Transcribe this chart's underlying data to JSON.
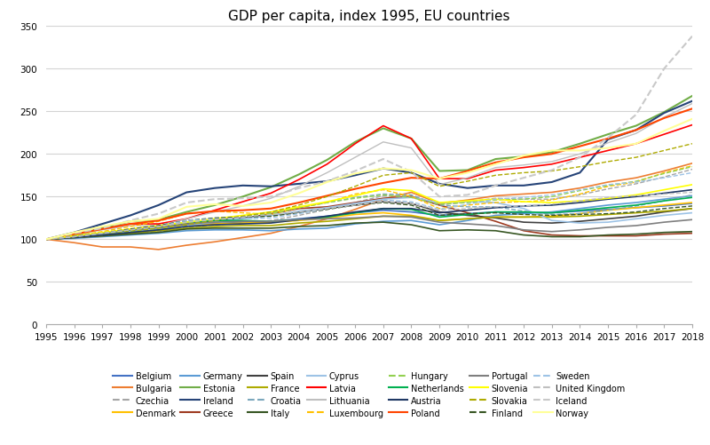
{
  "title": "GDP per capita, index 1995, EU countries",
  "years": [
    1995,
    1996,
    1997,
    1998,
    1999,
    2000,
    2001,
    2002,
    2003,
    2004,
    2005,
    2006,
    2007,
    2008,
    2009,
    2010,
    2011,
    2012,
    2013,
    2014,
    2015,
    2016,
    2017,
    2018
  ],
  "series": {
    "Belgium": {
      "color": "#4472C4",
      "style": "-",
      "lw": 1.2,
      "data": [
        100,
        103,
        106,
        109,
        112,
        116,
        118,
        120,
        121,
        124,
        127,
        131,
        134,
        132,
        128,
        130,
        132,
        131,
        131,
        133,
        135,
        137,
        139,
        142
      ]
    },
    "Bulgaria": {
      "color": "#ED7D31",
      "style": "-",
      "lw": 1.2,
      "data": [
        100,
        96,
        91,
        91,
        88,
        93,
        97,
        102,
        107,
        115,
        124,
        135,
        147,
        155,
        142,
        146,
        151,
        153,
        155,
        160,
        167,
        172,
        180,
        189
      ]
    },
    "Czechia": {
      "color": "#A5A5A5",
      "style": "--",
      "lw": 1.0,
      "data": [
        100,
        102,
        104,
        107,
        109,
        114,
        117,
        119,
        122,
        128,
        135,
        143,
        151,
        151,
        140,
        144,
        148,
        147,
        147,
        152,
        159,
        165,
        173,
        182
      ]
    },
    "Denmark": {
      "color": "#FFC000",
      "style": "-",
      "lw": 1.2,
      "data": [
        100,
        103,
        106,
        109,
        112,
        116,
        118,
        119,
        120,
        122,
        125,
        129,
        131,
        128,
        122,
        124,
        126,
        126,
        127,
        130,
        134,
        137,
        140,
        143
      ]
    },
    "Germany": {
      "color": "#5B9BD5",
      "style": "-",
      "lw": 1.2,
      "data": [
        100,
        101,
        103,
        105,
        107,
        110,
        111,
        111,
        110,
        112,
        113,
        118,
        121,
        122,
        117,
        122,
        128,
        130,
        132,
        136,
        140,
        143,
        147,
        151
      ]
    },
    "Estonia": {
      "color": "#70AD47",
      "style": "-",
      "lw": 1.5,
      "data": [
        100,
        105,
        113,
        121,
        123,
        132,
        140,
        150,
        161,
        176,
        193,
        214,
        230,
        218,
        180,
        181,
        194,
        197,
        202,
        212,
        223,
        233,
        249,
        268
      ]
    },
    "Ireland": {
      "color": "#264478",
      "style": "-",
      "lw": 1.5,
      "data": [
        100,
        108,
        118,
        128,
        140,
        155,
        160,
        163,
        162,
        165,
        168,
        175,
        183,
        178,
        165,
        160,
        163,
        163,
        167,
        178,
        217,
        228,
        248,
        262
      ]
    },
    "Greece": {
      "color": "#9E3B21",
      "style": "-",
      "lw": 1.2,
      "data": [
        100,
        103,
        106,
        108,
        112,
        117,
        120,
        124,
        130,
        136,
        138,
        143,
        148,
        150,
        140,
        131,
        121,
        110,
        105,
        104,
        104,
        104,
        106,
        107
      ]
    },
    "Spain": {
      "color": "#404040",
      "style": "-",
      "lw": 1.2,
      "data": [
        100,
        103,
        106,
        109,
        113,
        118,
        122,
        125,
        128,
        132,
        136,
        140,
        144,
        142,
        132,
        128,
        125,
        120,
        119,
        121,
        124,
        127,
        132,
        136
      ]
    },
    "France": {
      "color": "#AEAA00",
      "style": "-",
      "lw": 1.2,
      "data": [
        100,
        102,
        104,
        107,
        110,
        113,
        115,
        116,
        116,
        119,
        121,
        124,
        127,
        127,
        122,
        124,
        126,
        126,
        126,
        127,
        129,
        131,
        133,
        136
      ]
    },
    "Croatia": {
      "color": "#7BA7BC",
      "style": "--",
      "lw": 1.0,
      "data": [
        100,
        104,
        108,
        112,
        115,
        118,
        121,
        126,
        131,
        137,
        143,
        149,
        153,
        152,
        140,
        138,
        138,
        133,
        129,
        130,
        134,
        139,
        145,
        152
      ]
    },
    "Italy": {
      "color": "#375623",
      "style": "-",
      "lw": 1.2,
      "data": [
        100,
        102,
        104,
        106,
        108,
        112,
        113,
        113,
        113,
        115,
        116,
        119,
        120,
        117,
        110,
        111,
        110,
        105,
        103,
        103,
        105,
        106,
        108,
        109
      ]
    },
    "Cyprus": {
      "color": "#9DC3E6",
      "style": "-",
      "lw": 1.2,
      "data": [
        100,
        103,
        106,
        109,
        112,
        116,
        120,
        124,
        128,
        133,
        137,
        142,
        147,
        149,
        143,
        144,
        143,
        136,
        122,
        119,
        120,
        124,
        128,
        131
      ]
    },
    "Latvia": {
      "color": "#FF0000",
      "style": "-",
      "lw": 1.2,
      "data": [
        100,
        106,
        112,
        118,
        118,
        124,
        134,
        144,
        154,
        170,
        188,
        212,
        233,
        218,
        171,
        171,
        181,
        184,
        188,
        196,
        204,
        212,
        223,
        234
      ]
    },
    "Lithuania": {
      "color": "#BFBFBF",
      "style": "-",
      "lw": 1.0,
      "data": [
        100,
        105,
        111,
        116,
        116,
        124,
        132,
        139,
        148,
        162,
        178,
        196,
        214,
        207,
        164,
        172,
        184,
        187,
        191,
        200,
        213,
        224,
        243,
        259
      ]
    },
    "Luxembourg": {
      "color": "#FFC000",
      "style": "--",
      "lw": 1.0,
      "data": [
        100,
        104,
        109,
        115,
        121,
        130,
        133,
        131,
        129,
        137,
        143,
        153,
        158,
        150,
        136,
        140,
        143,
        144,
        146,
        153,
        162,
        167,
        178,
        186
      ]
    },
    "Hungary": {
      "color": "#92D050",
      "style": "--",
      "lw": 1.0,
      "data": [
        100,
        102,
        105,
        109,
        113,
        119,
        123,
        127,
        130,
        137,
        143,
        148,
        152,
        149,
        141,
        143,
        146,
        147,
        150,
        157,
        163,
        168,
        177,
        185
      ]
    },
    "Netherlands": {
      "color": "#00B050",
      "style": "-",
      "lw": 1.2,
      "data": [
        100,
        104,
        107,
        111,
        115,
        120,
        122,
        122,
        121,
        123,
        126,
        131,
        136,
        135,
        126,
        129,
        132,
        132,
        131,
        134,
        137,
        140,
        145,
        149
      ]
    },
    "Austria": {
      "color": "#1F3864",
      "style": "-",
      "lw": 1.2,
      "data": [
        100,
        102,
        105,
        108,
        111,
        115,
        117,
        118,
        119,
        123,
        127,
        132,
        136,
        136,
        131,
        134,
        137,
        139,
        140,
        143,
        147,
        150,
        154,
        158
      ]
    },
    "Poland": {
      "color": "#FF4500",
      "style": "-",
      "lw": 1.5,
      "data": [
        100,
        106,
        112,
        118,
        122,
        130,
        133,
        134,
        136,
        143,
        151,
        159,
        166,
        172,
        171,
        180,
        190,
        196,
        200,
        209,
        218,
        228,
        242,
        253
      ]
    },
    "Portugal": {
      "color": "#7F7F7F",
      "style": "-",
      "lw": 1.2,
      "data": [
        100,
        103,
        107,
        111,
        115,
        118,
        120,
        121,
        121,
        123,
        124,
        125,
        127,
        126,
        120,
        118,
        116,
        111,
        109,
        111,
        114,
        116,
        120,
        123
      ]
    },
    "Slovenia": {
      "color": "#FFFF00",
      "style": "-",
      "lw": 1.2,
      "data": [
        100,
        104,
        108,
        112,
        116,
        120,
        124,
        128,
        132,
        138,
        144,
        151,
        159,
        157,
        143,
        145,
        147,
        144,
        143,
        145,
        148,
        152,
        158,
        164
      ]
    },
    "Slovakia": {
      "color": "#AEAA00",
      "style": "--",
      "lw": 1.0,
      "data": [
        100,
        104,
        107,
        110,
        113,
        117,
        122,
        127,
        132,
        140,
        150,
        162,
        175,
        178,
        162,
        168,
        175,
        178,
        180,
        185,
        191,
        196,
        204,
        212
      ]
    },
    "Finland": {
      "color": "#375623",
      "style": "--",
      "lw": 1.0,
      "data": [
        100,
        103,
        107,
        112,
        116,
        122,
        125,
        126,
        127,
        131,
        135,
        140,
        143,
        140,
        128,
        130,
        131,
        129,
        128,
        129,
        130,
        132,
        136,
        139
      ]
    },
    "Sweden": {
      "color": "#9DC3E6",
      "style": "--",
      "lw": 1.0,
      "data": [
        100,
        103,
        107,
        111,
        115,
        122,
        124,
        124,
        125,
        130,
        136,
        142,
        146,
        144,
        135,
        141,
        147,
        149,
        152,
        158,
        164,
        167,
        172,
        178
      ]
    },
    "United Kingdom": {
      "color": "#BFBFBF",
      "style": "--",
      "lw": 1.0,
      "data": [
        100,
        103,
        107,
        111,
        115,
        120,
        123,
        126,
        129,
        132,
        136,
        140,
        144,
        142,
        134,
        136,
        138,
        139,
        141,
        145,
        149,
        151,
        153,
        155
      ]
    },
    "Iceland": {
      "color": "#C9C9C9",
      "style": "--",
      "lw": 1.5,
      "data": [
        100,
        107,
        113,
        122,
        130,
        143,
        147,
        148,
        150,
        160,
        168,
        180,
        194,
        179,
        150,
        152,
        163,
        172,
        181,
        196,
        219,
        246,
        300,
        338
      ]
    },
    "Norway": {
      "color": "#FFFF99",
      "style": "-",
      "lw": 1.5,
      "data": [
        100,
        108,
        115,
        121,
        124,
        138,
        141,
        139,
        143,
        154,
        167,
        177,
        183,
        181,
        171,
        178,
        188,
        198,
        204,
        204,
        207,
        212,
        227,
        241
      ]
    }
  },
  "ylim": [
    0,
    350
  ],
  "yticks": [
    0,
    50,
    100,
    150,
    200,
    250,
    300,
    350
  ],
  "background_color": "#FFFFFF",
  "grid_color": "#D3D3D3",
  "title_fontsize": 11,
  "legend_fontsize": 7.0,
  "tick_fontsize": 7.5,
  "legend_order": [
    "Belgium",
    "Bulgaria",
    "Czechia",
    "Denmark",
    "Germany",
    "Estonia",
    "Ireland",
    "Greece",
    "Spain",
    "France",
    "Croatia",
    "Italy",
    "Cyprus",
    "Latvia",
    "Lithuania",
    "Luxembourg",
    "Hungary",
    "Netherlands",
    "Austria",
    "Poland",
    "Portugal",
    "Slovenia",
    "Slovakia",
    "Finland",
    "Sweden",
    "United Kingdom",
    "Iceland",
    "Norway"
  ]
}
